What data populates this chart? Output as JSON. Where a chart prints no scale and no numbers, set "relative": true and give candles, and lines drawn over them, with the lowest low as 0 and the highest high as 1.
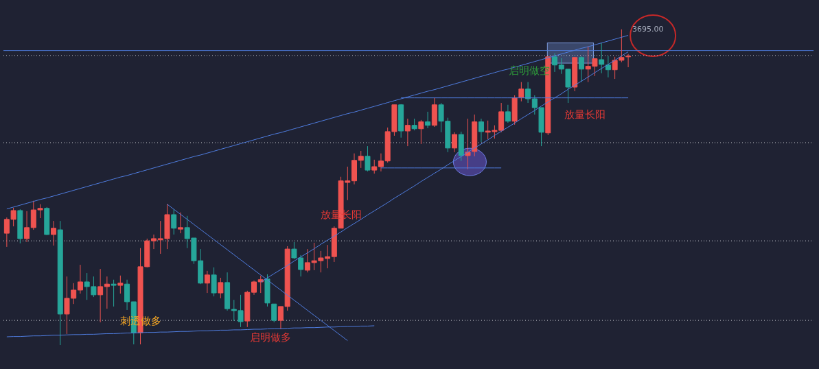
{
  "chart_data": {
    "type": "candlestick",
    "relative": true,
    "categories": [
      null,
      null,
      null,
      null,
      null,
      null,
      null,
      null,
      null,
      null,
      null,
      null,
      null,
      null,
      null,
      null,
      null,
      null,
      null,
      null,
      null,
      null,
      null,
      null,
      null,
      null,
      null,
      null,
      null,
      null,
      null,
      null,
      null,
      null,
      null,
      null,
      null,
      null,
      null,
      null,
      null,
      null,
      null,
      null,
      null,
      null,
      null,
      null,
      null,
      null,
      null,
      null,
      null,
      null,
      null,
      null,
      null,
      null,
      null,
      null,
      null,
      null,
      null,
      null,
      null,
      null,
      null,
      null,
      null,
      null,
      null,
      null,
      null,
      null,
      null,
      null,
      null,
      null,
      null,
      null,
      null,
      null,
      null,
      null,
      null,
      null,
      null,
      null,
      null,
      null,
      null,
      null,
      null,
      null
    ],
    "ohlc": [
      [
        0.354,
        0.404,
        0.311,
        0.398
      ],
      [
        0.398,
        0.435,
        0.376,
        0.426
      ],
      [
        0.426,
        0.43,
        0.322,
        0.337
      ],
      [
        0.337,
        0.424,
        0.326,
        0.372
      ],
      [
        0.372,
        0.457,
        0.365,
        0.428
      ],
      [
        0.428,
        0.446,
        0.402,
        0.433
      ],
      [
        0.433,
        0.437,
        0.348,
        0.35
      ],
      [
        0.35,
        0.393,
        0.315,
        0.37
      ],
      [
        0.365,
        0.393,
        0,
        0.098
      ],
      [
        0.098,
        0.217,
        0.035,
        0.148
      ],
      [
        0.148,
        0.196,
        0.13,
        0.174
      ],
      [
        0.174,
        0.254,
        0.163,
        0.2
      ],
      [
        0.2,
        0.228,
        0.143,
        0.185
      ],
      [
        0.185,
        0.217,
        0.152,
        0.159
      ],
      [
        0.159,
        0.241,
        0.072,
        0.185
      ],
      [
        0.185,
        0.217,
        0.115,
        0.193
      ],
      [
        0.193,
        0.207,
        0.122,
        0.189
      ],
      [
        0.189,
        0.22,
        0.163,
        0.196
      ],
      [
        0.193,
        0.207,
        0.111,
        0.137
      ],
      [
        0.137,
        0.137,
        0.002,
        0.039
      ],
      [
        0.039,
        0.307,
        0.002,
        0.248
      ],
      [
        0.248,
        0.337,
        0.246,
        0.33
      ],
      [
        0.33,
        0.35,
        0.304,
        0.337
      ],
      [
        0.333,
        0.393,
        0.289,
        0.337
      ],
      [
        0.337,
        0.446,
        0.304,
        0.413
      ],
      [
        0.413,
        0.43,
        0.35,
        0.37
      ],
      [
        0.367,
        0.42,
        0.354,
        0.372
      ],
      [
        0.372,
        0.409,
        0.307,
        0.337
      ],
      [
        0.339,
        0.339,
        0.257,
        0.267
      ],
      [
        0.267,
        0.304,
        0.193,
        0.196
      ],
      [
        0.196,
        0.235,
        0.165,
        0.222
      ],
      [
        0.222,
        0.246,
        0.154,
        0.165
      ],
      [
        0.165,
        0.213,
        0.148,
        0.198
      ],
      [
        0.198,
        0.23,
        0.109,
        0.115
      ],
      [
        0.113,
        0.143,
        0.076,
        0.109
      ],
      [
        0.109,
        0.159,
        0.057,
        0.074
      ],
      [
        0.076,
        0.172,
        0.057,
        0.167
      ],
      [
        0.167,
        0.204,
        0.159,
        0.2
      ],
      [
        0.2,
        0.22,
        0.165,
        0.207
      ],
      [
        0.209,
        0.224,
        0.122,
        0.133
      ],
      [
        0.13,
        0.13,
        0.072,
        0.078
      ],
      [
        0.078,
        0.122,
        0.05,
        0.122
      ],
      [
        0.122,
        0.313,
        0.109,
        0.304
      ],
      [
        0.304,
        0.326,
        0.272,
        0.276
      ],
      [
        0.276,
        0.285,
        0.217,
        0.239
      ],
      [
        0.237,
        0.304,
        0.23,
        0.261
      ],
      [
        0.261,
        0.324,
        0.237,
        0.267
      ],
      [
        0.267,
        0.298,
        0.23,
        0.276
      ],
      [
        0.274,
        0.317,
        0.243,
        0.28
      ],
      [
        0.28,
        0.376,
        0.263,
        0.37
      ],
      [
        0.37,
        0.533,
        0.37,
        0.52
      ],
      [
        0.515,
        0.565,
        0.459,
        0.52
      ],
      [
        0.52,
        0.607,
        0.509,
        0.585
      ],
      [
        0.585,
        0.615,
        0.561,
        0.598
      ],
      [
        0.598,
        0.63,
        0.55,
        0.554
      ],
      [
        0.554,
        0.587,
        0.543,
        0.565
      ],
      [
        0.565,
        0.607,
        0.55,
        0.583
      ],
      [
        0.583,
        0.689,
        0.578,
        0.676
      ],
      [
        0.676,
        0.761,
        0.663,
        0.761
      ],
      [
        0.761,
        0.763,
        0.657,
        0.678
      ],
      [
        0.678,
        0.717,
        0.63,
        0.696
      ],
      [
        0.696,
        0.717,
        0.68,
        0.685
      ],
      [
        0.685,
        0.713,
        0.637,
        0.707
      ],
      [
        0.707,
        0.739,
        0.687,
        0.696
      ],
      [
        0.696,
        0.783,
        0.691,
        0.761
      ],
      [
        0.761,
        0.767,
        0.674,
        0.709
      ],
      [
        0.709,
        0.72,
        0.611,
        0.624
      ],
      [
        0.624,
        0.674,
        0.611,
        0.667
      ],
      [
        0.667,
        0.676,
        0.583,
        0.6
      ],
      [
        0.6,
        0.717,
        0.557,
        0.611
      ],
      [
        0.613,
        0.73,
        0.598,
        0.707
      ],
      [
        0.707,
        0.717,
        0.643,
        0.676
      ],
      [
        0.674,
        0.711,
        0.652,
        0.678
      ],
      [
        0.676,
        0.696,
        0.654,
        0.68
      ],
      [
        0.68,
        0.767,
        0.674,
        0.739
      ],
      [
        0.739,
        0.761,
        0.704,
        0.709
      ],
      [
        0.709,
        0.791,
        0.698,
        0.783
      ],
      [
        0.785,
        0.833,
        0.772,
        0.811
      ],
      [
        0.811,
        0.833,
        0.767,
        0.78
      ],
      [
        0.78,
        0.791,
        0.73,
        0.752
      ],
      [
        0.752,
        0.752,
        0.63,
        0.674
      ],
      [
        0.672,
        0.913,
        0.665,
        0.913
      ],
      [
        0.913,
        0.924,
        0.865,
        0.887
      ],
      [
        0.887,
        0.909,
        0.859,
        0.874
      ],
      [
        0.874,
        0.874,
        0.767,
        0.817
      ],
      [
        0.817,
        0.911,
        0.804,
        0.911
      ],
      [
        0.911,
        0.915,
        0.833,
        0.874
      ],
      [
        0.874,
        0.946,
        0.833,
        0.883
      ],
      [
        0.883,
        0.909,
        0.852,
        0.907
      ],
      [
        0.904,
        0.957,
        0.861,
        0.889
      ],
      [
        0.887,
        0.915,
        0.848,
        0.872
      ],
      [
        0.872,
        0.913,
        0.843,
        0.902
      ],
      [
        0.902,
        1,
        0.896,
        0.911
      ],
      [
        0.913,
        0.922,
        0.88,
        0.915
      ]
    ],
    "colors": [
      "#ef5350",
      "#ef5350",
      "#26a69a",
      "#ef5350",
      "#ef5350",
      "#ef5350",
      "#26a69a",
      "#ef5350",
      "#26a69a",
      "#ef5350",
      "#ef5350",
      "#ef5350",
      "#26a69a",
      "#26a69a",
      "#ef5350",
      "#ef5350",
      "#26a69a",
      "#ef5350",
      "#26a69a",
      "#26a69a",
      "#ef5350",
      "#ef5350",
      "#ef5350",
      "#ef5350",
      "#ef5350",
      "#26a69a",
      "#ef5350",
      "#26a69a",
      "#26a69a",
      "#26a69a",
      "#ef5350",
      "#26a69a",
      "#ef5350",
      "#26a69a",
      "#26a69a",
      "#26a69a",
      "#ef5350",
      "#ef5350",
      "#ef5350",
      "#26a69a",
      "#26a69a",
      "#ef5350",
      "#ef5350",
      "#26a69a",
      "#26a69a",
      "#ef5350",
      "#ef5350",
      "#ef5350",
      "#ef5350",
      "#ef5350",
      "#ef5350",
      "#ef5350",
      "#ef5350",
      "#ef5350",
      "#26a69a",
      "#ef5350",
      "#ef5350",
      "#ef5350",
      "#ef5350",
      "#26a69a",
      "#ef5350",
      "#26a69a",
      "#ef5350",
      "#26a69a",
      "#ef5350",
      "#26a69a",
      "#26a69a",
      "#ef5350",
      "#26a69a",
      "#ef5350",
      "#ef5350",
      "#26a69a",
      "#ef5350",
      "#ef5350",
      "#ef5350",
      "#26a69a",
      "#ef5350",
      "#ef5350",
      "#26a69a",
      "#26a69a",
      "#26a69a",
      "#ef5350",
      "#26a69a",
      "#26a69a",
      "#26a69a",
      "#ef5350",
      "#26a69a",
      "#ef5350",
      "#ef5350",
      "#26a69a",
      "#26a69a",
      "#ef5350",
      "#ef5350",
      "#ef5350"
    ],
    "series": [
      {
        "type": "line",
        "color": "#4f7de0",
        "values": [
          0.431,
          0.437,
          0.443,
          0.449,
          0.455,
          0.461,
          0.466,
          0.472,
          0.478,
          0.484,
          0.49,
          0.496,
          0.502,
          0.508,
          0.514,
          0.52,
          0.526,
          0.532,
          0.537,
          0.543,
          0.549,
          0.555,
          0.561,
          0.567,
          0.573,
          0.579,
          0.585,
          0.591,
          0.597,
          0.602,
          0.608,
          0.614,
          0.62,
          0.626,
          0.632,
          0.638,
          0.644,
          0.65,
          0.656,
          0.662,
          0.668,
          0.673,
          0.679,
          0.685,
          0.691,
          0.697,
          0.703,
          0.709,
          0.715,
          0.721,
          0.727,
          0.733,
          0.738,
          0.744,
          0.75,
          0.756,
          0.762,
          0.768,
          0.774,
          0.78,
          0.786,
          0.792,
          0.798,
          0.804,
          0.809,
          0.815,
          0.821,
          0.827,
          0.833,
          0.839,
          0.845,
          0.851,
          0.857,
          0.863,
          0.869,
          0.874,
          0.88,
          0.886,
          0.892,
          0.898,
          0.904,
          0.91,
          0.916,
          0.922,
          0.928,
          0.934,
          0.94,
          0.945,
          0.951,
          0.957,
          0.963,
          0.969,
          0.975,
          0.981
        ]
      },
      {
        "type": "line",
        "color": "#4f7de0",
        "values": [
          null,
          null,
          null,
          null,
          null,
          null,
          null,
          null,
          null,
          null,
          null,
          null,
          null,
          null,
          null,
          null,
          null,
          null,
          null,
          null,
          null,
          null,
          null,
          null,
          null,
          null,
          null,
          null,
          null,
          null,
          null,
          null,
          null,
          null,
          null,
          null,
          null,
          null,
          0.199,
          0.213,
          0.226,
          0.239,
          0.252,
          0.266,
          0.279,
          0.292,
          0.305,
          0.319,
          0.332,
          0.345,
          0.358,
          0.372,
          0.385,
          0.398,
          0.412,
          0.425,
          0.438,
          0.451,
          0.465,
          0.478,
          0.491,
          0.504,
          0.518,
          0.531,
          0.544,
          0.557,
          0.571,
          0.584,
          0.597,
          0.611,
          0.624,
          0.637,
          0.65,
          0.664,
          0.677,
          0.69,
          0.703,
          0.717,
          0.73,
          0.743,
          0.757,
          0.77,
          0.783,
          0.796,
          0.81,
          0.823,
          0.836,
          0.849,
          0.863,
          0.876,
          0.889,
          0.902,
          0.916,
          0.929
        ]
      },
      {
        "type": "line",
        "color": "#4f7de0",
        "values": [
          null,
          null,
          null,
          null,
          null,
          null,
          null,
          null,
          null,
          null,
          null,
          null,
          null,
          null,
          null,
          null,
          null,
          null,
          null,
          null,
          null,
          null,
          null,
          null,
          0.446,
          0.43,
          0.414,
          0.398,
          0.382,
          0.366,
          0.35,
          0.334,
          0.318,
          0.302,
          0.286,
          0.27,
          0.254,
          0.238,
          0.222,
          0.206,
          0.19,
          0.174,
          0.158,
          0.142,
          0.126,
          0.11,
          0.094,
          0.078,
          0.062,
          0.046,
          0.03,
          0.014,
          null,
          null,
          null,
          null,
          null,
          null,
          null,
          null,
          null,
          null,
          null,
          null,
          null,
          null,
          null,
          null,
          null,
          null,
          null,
          null,
          null,
          null,
          null,
          null,
          null,
          null,
          null,
          null,
          null,
          null,
          null,
          null,
          null,
          null,
          null,
          null,
          null,
          null,
          null,
          null,
          null,
          null
        ]
      },
      {
        "type": "line",
        "color": "#4f7de0",
        "values": [
          0.026,
          0.027,
          0.027,
          0.028,
          0.029,
          0.029,
          0.03,
          0.031,
          0.031,
          0.032,
          0.033,
          0.033,
          0.034,
          0.034,
          0.035,
          0.036,
          0.036,
          0.037,
          0.038,
          0.038,
          0.039,
          0.04,
          0.04,
          0.041,
          0.041,
          0.042,
          0.043,
          0.043,
          0.044,
          0.045,
          0.045,
          0.046,
          0.047,
          0.047,
          0.048,
          0.048,
          0.049,
          0.05,
          0.05,
          0.051,
          0.052,
          0.052,
          0.053,
          0.054,
          0.054,
          0.055,
          0.055,
          0.056,
          0.057,
          0.057,
          0.058,
          0.059,
          0.059,
          0.06,
          0.06,
          0.061,
          null,
          null,
          null,
          null,
          null,
          null,
          null,
          null,
          null,
          null,
          null,
          null,
          null,
          null,
          null,
          null,
          null,
          null,
          null,
          null,
          null,
          null,
          null,
          null,
          null,
          null,
          null,
          null,
          null,
          null,
          null,
          null,
          null,
          null,
          null,
          null,
          null,
          null
        ]
      },
      {
        "type": "line",
        "color": "#4f7de0",
        "values": [
          null,
          null,
          null,
          null,
          null,
          null,
          null,
          null,
          null,
          null,
          null,
          null,
          null,
          null,
          null,
          null,
          null,
          null,
          null,
          null,
          null,
          null,
          null,
          null,
          null,
          null,
          null,
          null,
          null,
          null,
          null,
          null,
          null,
          null,
          null,
          null,
          null,
          null,
          null,
          null,
          null,
          null,
          null,
          null,
          null,
          null,
          null,
          null,
          null,
          null,
          null,
          null,
          null,
          null,
          null,
          null,
          null,
          null,
          null,
          0.783,
          0.783,
          0.783,
          0.783,
          0.783,
          0.783,
          0.783,
          0.783,
          0.783,
          0.783,
          0.783,
          0.783,
          0.783,
          0.783,
          0.783,
          0.783,
          0.783,
          0.783,
          0.783,
          0.783,
          0.783,
          0.783,
          0.783,
          0.783,
          0.783,
          0.783,
          0.783,
          0.783,
          0.783,
          0.783,
          0.783,
          0.783,
          0.783,
          0.783,
          0.783
        ]
      },
      {
        "type": "line",
        "color": "#4f7de0",
        "values": [
          null,
          null,
          null,
          null,
          null,
          null,
          null,
          null,
          null,
          null,
          null,
          null,
          null,
          null,
          null,
          null,
          null,
          null,
          null,
          null,
          null,
          null,
          null,
          null,
          null,
          null,
          null,
          null,
          null,
          null,
          null,
          null,
          null,
          null,
          null,
          null,
          null,
          null,
          null,
          null,
          null,
          null,
          null,
          null,
          null,
          null,
          null,
          null,
          null,
          null,
          null,
          null,
          null,
          null,
          null,
          null,
          0.561,
          0.561,
          0.561,
          0.561,
          0.561,
          0.561,
          0.561,
          0.561,
          0.561,
          0.561,
          0.561,
          0.561,
          0.561,
          0.561,
          0.561,
          0.561,
          0.561,
          0.561,
          0.561,
          null,
          null,
          null,
          null,
          null,
          null,
          null,
          null,
          null,
          null,
          null,
          null,
          null,
          null,
          null,
          null,
          null,
          null,
          null
        ]
      }
    ],
    "ref_lines": [
      {
        "axis": "y",
        "value": 0.933,
        "color": "#4f7de0",
        "line_style": "solid"
      },
      {
        "axis": "y",
        "value": 0.917,
        "color": "#c9cbd1",
        "line_style": "dotted"
      },
      {
        "axis": "y",
        "value": 0.641,
        "color": "#c9cbd1",
        "line_style": "dotted"
      },
      {
        "axis": "y",
        "value": 0.33,
        "color": "#c9cbd1",
        "line_style": "dotted"
      },
      {
        "axis": "y",
        "value": 0.078,
        "color": "#c9cbd1",
        "line_style": "dotted"
      }
    ],
    "annotations": [
      "刺透做多",
      "启明做多",
      "放量长阳",
      "启明做空",
      "放量长阳",
      "3695.00"
    ]
  }
}
